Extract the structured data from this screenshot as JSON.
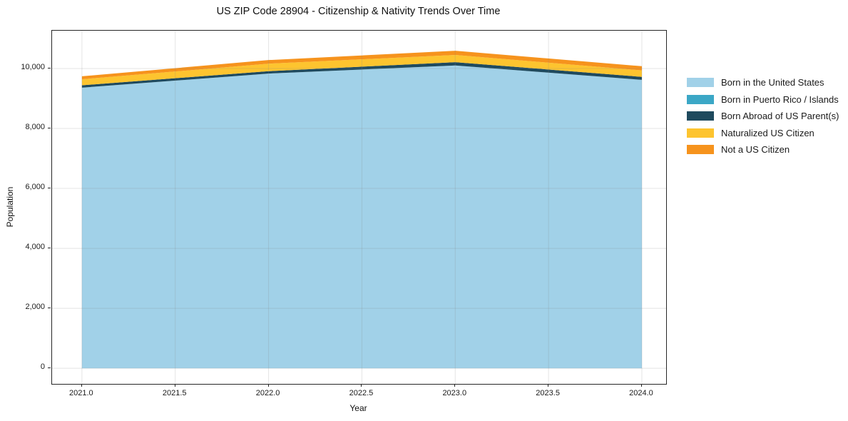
{
  "chart_data": {
    "type": "area",
    "stacked": true,
    "title": "US ZIP Code 28904 - Citizenship & Nativity Trends Over Time",
    "xlabel": "Year",
    "ylabel": "Population",
    "x": [
      2021,
      2022,
      2023,
      2024
    ],
    "series": [
      {
        "name": "Born in the United States",
        "color": "#a1d1e8",
        "values": [
          9360,
          9830,
          10100,
          9620
        ]
      },
      {
        "name": "Born in Puerto Rico / Islands",
        "color": "#3ba7c6",
        "values": [
          0,
          0,
          0,
          0
        ]
      },
      {
        "name": "Born Abroad of US Parent(s)",
        "color": "#1f4a5e",
        "values": [
          80,
          80,
          110,
          100
        ]
      },
      {
        "name": "Naturalized US Citizen",
        "color": "#fdc42f",
        "values": [
          200,
          250,
          240,
          215
        ]
      },
      {
        "name": "Not a US Citizen",
        "color": "#f6931d",
        "values": [
          100,
          120,
          140,
          140
        ]
      }
    ],
    "totals": [
      9740,
      10280,
      10590,
      10075
    ],
    "xlim": [
      2020.84,
      2024.13
    ],
    "ylim": [
      -520,
      11260
    ],
    "xticks": [
      2021.0,
      2021.5,
      2022.0,
      2022.5,
      2023.0,
      2023.5,
      2024.0
    ],
    "xtick_labels": [
      "2021.0",
      "2021.5",
      "2022.0",
      "2022.5",
      "2023.0",
      "2023.5",
      "2024.0"
    ],
    "yticks": [
      0,
      2000,
      4000,
      6000,
      8000,
      10000
    ],
    "ytick_labels": [
      "0",
      "2,000",
      "4,000",
      "6,000",
      "8,000",
      "10,000"
    ],
    "grid": true,
    "grid_color": "rgba(130,130,130,0.22)",
    "legend_position": "right-outside",
    "background": "#ffffff",
    "spine_color": "#262626"
  }
}
